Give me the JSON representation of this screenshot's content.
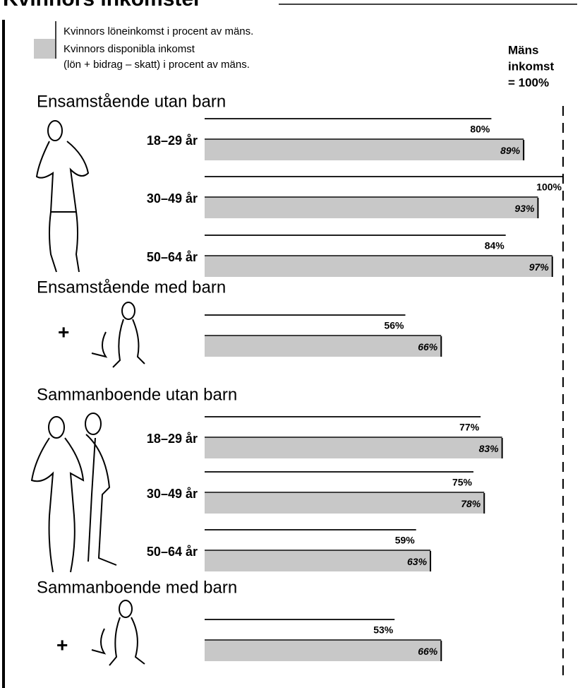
{
  "chart_data": {
    "type": "paired-bar",
    "title": "Kvinnors inkomster",
    "reference_label": [
      "Mäns",
      "inkomst",
      "= 100%"
    ],
    "xlim": [
      0,
      100
    ],
    "groups": [
      {
        "name": "Ensamstående utan barn",
        "categories": [
          "18–29 år",
          "30–49 år",
          "50–64 år"
        ]
      },
      {
        "name": "Ensamstående med barn",
        "categories": [
          null
        ]
      },
      {
        "name": "Sammanboende utan barn",
        "categories": [
          "18–29 år",
          "30–49 år",
          "50–64 år"
        ]
      },
      {
        "name": "Sammanboende med barn",
        "categories": [
          null
        ]
      }
    ],
    "series": [
      {
        "name": "Kvinnors löneinkomst i procent av mäns.",
        "color": "#000000",
        "values": [
          80,
          100,
          84,
          56,
          77,
          75,
          59,
          53
        ],
        "value_labels": [
          "80%",
          "100%",
          "84%",
          "56%",
          "77%",
          "75%",
          "59%",
          "53%"
        ]
      },
      {
        "name": "Kvinnors disponibla inkomst",
        "note": "(lön + bidrag – skatt) i procent av mäns.",
        "color": "#c8c8c8",
        "values": [
          89,
          93,
          97,
          66,
          83,
          78,
          63,
          66
        ],
        "value_labels": [
          "89%",
          "93%",
          "97%",
          "66%",
          "83%",
          "78%",
          "63%",
          "66%"
        ]
      }
    ]
  }
}
